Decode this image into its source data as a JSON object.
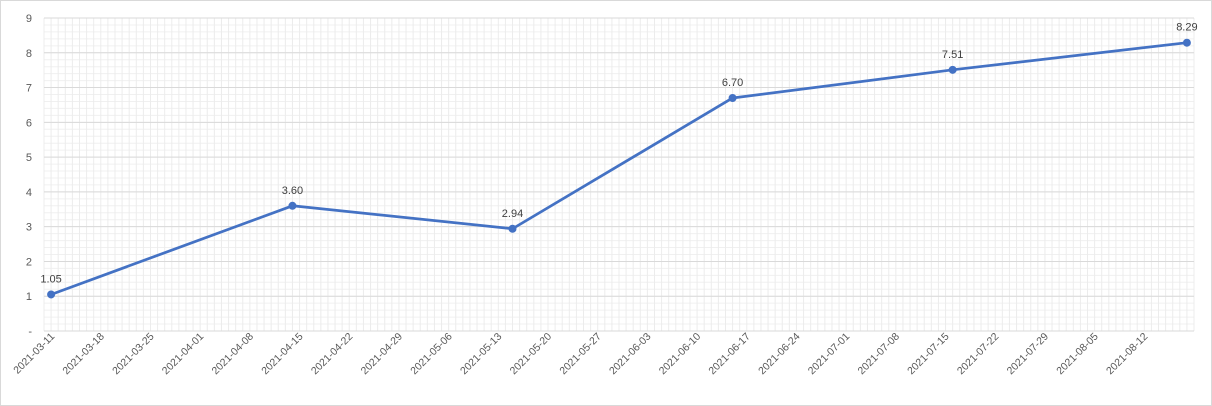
{
  "chart_data": {
    "type": "line",
    "title": "",
    "xlabel": "",
    "ylabel": "",
    "ylim": [
      0,
      9
    ],
    "y_ticks": [
      {
        "value": 0,
        "label": "-"
      },
      {
        "value": 1,
        "label": "1"
      },
      {
        "value": 2,
        "label": "2"
      },
      {
        "value": 3,
        "label": "3"
      },
      {
        "value": 4,
        "label": "4"
      },
      {
        "value": 5,
        "label": "5"
      },
      {
        "value": 6,
        "label": "6"
      },
      {
        "value": 7,
        "label": "7"
      },
      {
        "value": 8,
        "label": "8"
      },
      {
        "value": 9,
        "label": "9"
      }
    ],
    "x_range": [
      "2021-03-10",
      "2021-08-19"
    ],
    "x_ticks": [
      "2021-03-11",
      "2021-03-18",
      "2021-03-25",
      "2021-04-01",
      "2021-04-08",
      "2021-04-15",
      "2021-04-22",
      "2021-04-29",
      "2021-05-06",
      "2021-05-13",
      "2021-05-20",
      "2021-05-27",
      "2021-06-03",
      "2021-06-10",
      "2021-06-17",
      "2021-06-24",
      "2021-07-01",
      "2021-07-08",
      "2021-07-15",
      "2021-07-22",
      "2021-07-29",
      "2021-08-05",
      "2021-08-12"
    ],
    "grid": true,
    "legend": "none",
    "line_color": "#4472C4",
    "series": [
      {
        "points": [
          {
            "x": "2021-03-11",
            "y": 1.05,
            "label": "1.05"
          },
          {
            "x": "2021-04-14",
            "y": 3.6,
            "label": "3.60"
          },
          {
            "x": "2021-05-15",
            "y": 2.94,
            "label": "2.94"
          },
          {
            "x": "2021-06-15",
            "y": 6.7,
            "label": "6.70"
          },
          {
            "x": "2021-07-16",
            "y": 7.51,
            "label": "7.51"
          },
          {
            "x": "2021-08-18",
            "y": 8.29,
            "label": "8.29"
          }
        ]
      }
    ]
  }
}
